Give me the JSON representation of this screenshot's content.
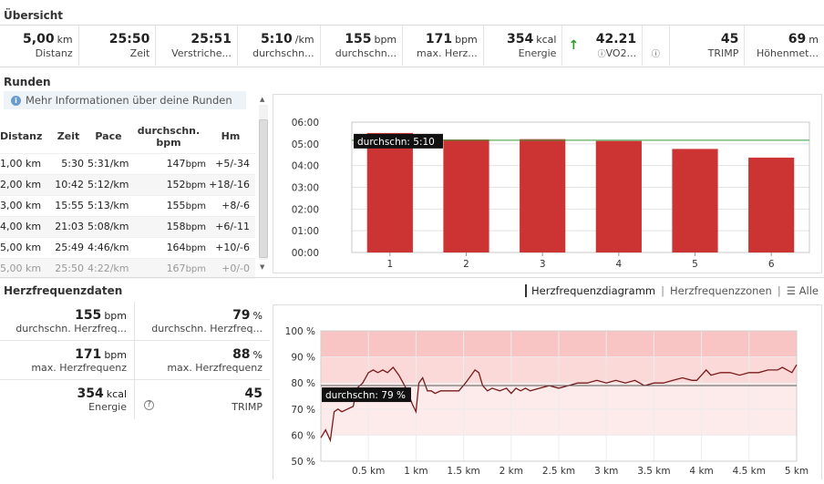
{
  "overview": {
    "title": "Übersicht",
    "stats": [
      {
        "value": "5,00",
        "unit": "km",
        "label": "Distanz"
      },
      {
        "value": "25:50",
        "unit": "",
        "label": "Zeit"
      },
      {
        "value": "25:51",
        "unit": "",
        "label": "Verstriche..."
      },
      {
        "value": "5:10",
        "unit": "/km",
        "label": "durchschn..."
      },
      {
        "value": "155",
        "unit": "bpm",
        "label": "durchschn..."
      },
      {
        "value": "171",
        "unit": "bpm",
        "label": "max. Herz..."
      },
      {
        "value": "354",
        "unit": "kcal",
        "label": "Energie"
      },
      {
        "value": "42.21",
        "unit": "",
        "label": "VO2..."
      },
      {
        "value": "",
        "unit": "",
        "label": ""
      },
      {
        "value": "45",
        "unit": "",
        "label": "TRIMP"
      },
      {
        "value": "69",
        "unit": "m",
        "label": "Höhenmet..."
      }
    ],
    "trend_icon": "arrow-up-icon",
    "accent_green": "#2a9a2a"
  },
  "laps": {
    "title": "Runden",
    "info_text": "Mehr Informationen über deine Runden",
    "headers": [
      "Distanz",
      "Zeit",
      "Pace",
      "durchschn. bpm",
      "Hm"
    ],
    "rows": [
      {
        "distanz": "1,00 km",
        "zeit": "5:30",
        "pace": "5:31/km",
        "bpm": "147",
        "hm": "+5/-34"
      },
      {
        "distanz": "2,00 km",
        "zeit": "10:42",
        "pace": "5:12/km",
        "bpm": "152",
        "hm": "+18/-16"
      },
      {
        "distanz": "3,00 km",
        "zeit": "15:55",
        "pace": "5:13/km",
        "bpm": "155",
        "hm": "+8/-6"
      },
      {
        "distanz": "4,00 km",
        "zeit": "21:03",
        "pace": "5:08/km",
        "bpm": "158",
        "hm": "+6/-11"
      },
      {
        "distanz": "5,00 km",
        "zeit": "25:49",
        "pace": "4:46/km",
        "bpm": "164",
        "hm": "+10/-6"
      },
      {
        "distanz": "5,00 km",
        "zeit": "25:50",
        "pace": "4:22/km",
        "bpm": "167",
        "hm": "+0/-0"
      }
    ],
    "bpm_unit": "bpm"
  },
  "heart": {
    "title": "Herzfrequenzdaten",
    "tabs": [
      "Herzfrequenzdiagramm",
      "Herzfrequenzzonen",
      "Alle"
    ],
    "cells": [
      {
        "value": "155",
        "unit": "bpm",
        "label": "durchschn. Herzfreq..."
      },
      {
        "value": "79",
        "unit": "%",
        "label": "durchschn. Herzfreq..."
      },
      {
        "value": "171",
        "unit": "bpm",
        "label": "max. Herzfrequenz"
      },
      {
        "value": "88",
        "unit": "%",
        "label": "max. Herzfrequenz"
      },
      {
        "value": "354",
        "unit": "kcal",
        "label": "Energie"
      },
      {
        "value": "45",
        "unit": "",
        "label": "TRIMP"
      }
    ]
  },
  "chart_data": [
    {
      "type": "bar",
      "categories": [
        "1",
        "2",
        "3",
        "4",
        "5",
        "6"
      ],
      "values": [
        5.5,
        5.2,
        5.217,
        5.133,
        4.767,
        4.367
      ],
      "value_format": "minutes per km (m:ss)",
      "ylim": [
        0,
        6
      ],
      "yticks": [
        "00:00",
        "01:00",
        "02:00",
        "03:00",
        "04:00",
        "05:00",
        "06:00"
      ],
      "reference_line": {
        "value": 5.167,
        "label": "durchschn: 5:10",
        "color": "#3a9a3a"
      },
      "bar_color": "#cc3333",
      "grid": true
    },
    {
      "type": "line",
      "xlabel_ticks": [
        "0.5 km",
        "1 km",
        "1.5 km",
        "2 km",
        "2.5 km",
        "3 km",
        "3.5 km",
        "4 km",
        "4.5 km",
        "5 km"
      ],
      "yticks": [
        "50 %",
        "60 %",
        "70 %",
        "80 %",
        "90 %",
        "100 %"
      ],
      "xlim": [
        0,
        5
      ],
      "ylim": [
        50,
        100
      ],
      "reference_line": {
        "value": 79,
        "label": "durchschn: 79 %"
      },
      "zone_color": "#f8c4c4",
      "line_color": "#7a1a1a",
      "x": [
        0.0,
        0.05,
        0.1,
        0.14,
        0.18,
        0.22,
        0.28,
        0.34,
        0.38,
        0.44,
        0.5,
        0.55,
        0.6,
        0.65,
        0.7,
        0.76,
        0.82,
        0.88,
        0.92,
        0.96,
        1.0,
        1.03,
        1.07,
        1.12,
        1.16,
        1.2,
        1.26,
        1.32,
        1.38,
        1.45,
        1.52,
        1.58,
        1.62,
        1.66,
        1.7,
        1.75,
        1.8,
        1.88,
        1.95,
        2.0,
        2.05,
        2.1,
        2.15,
        2.2,
        2.3,
        2.4,
        2.5,
        2.6,
        2.7,
        2.8,
        2.9,
        3.0,
        3.1,
        3.2,
        3.3,
        3.4,
        3.5,
        3.6,
        3.7,
        3.8,
        3.9,
        3.95,
        4.0,
        4.05,
        4.1,
        4.2,
        4.3,
        4.4,
        4.5,
        4.6,
        4.7,
        4.8,
        4.85,
        4.9,
        4.95,
        5.0
      ],
      "y": [
        59,
        62,
        58,
        69,
        70,
        69,
        70,
        71,
        78,
        80,
        84,
        85,
        84,
        85,
        84,
        86,
        83,
        79,
        76,
        72,
        69,
        80,
        82,
        77,
        77,
        76,
        77,
        77,
        77,
        77,
        80,
        83,
        85,
        84,
        79,
        77,
        78,
        77,
        78,
        76,
        78,
        77,
        78,
        77,
        78,
        79,
        78,
        79,
        80,
        80,
        81,
        80,
        81,
        80,
        81,
        79,
        80,
        80,
        81,
        82,
        81,
        81,
        83,
        85,
        83,
        84,
        84,
        83,
        84,
        84,
        85,
        85,
        86,
        85,
        84,
        87
      ]
    }
  ]
}
